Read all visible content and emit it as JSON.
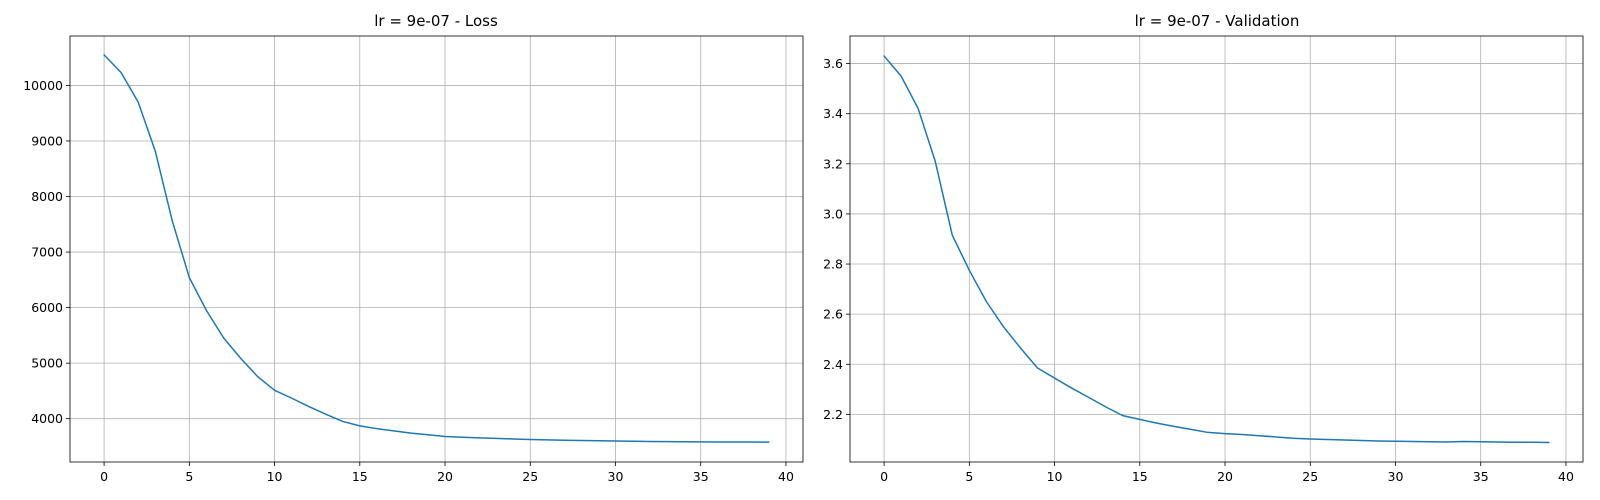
{
  "chart_data": [
    {
      "type": "line",
      "title": "lr = 9e-07 - Loss",
      "xlabel": "",
      "ylabel": "",
      "xlim": [
        -2,
        41
      ],
      "ylim": [
        3220,
        10890
      ],
      "xticks": [
        0,
        5,
        10,
        15,
        20,
        25,
        30,
        35,
        40
      ],
      "yticks": [
        4000,
        5000,
        6000,
        7000,
        8000,
        9000,
        10000
      ],
      "grid": true,
      "color": "#1f77b4",
      "x": [
        0,
        1,
        2,
        3,
        4,
        5,
        6,
        7,
        8,
        9,
        10,
        11,
        12,
        13,
        14,
        15,
        16,
        17,
        18,
        19,
        20,
        21,
        22,
        23,
        24,
        25,
        26,
        27,
        28,
        29,
        30,
        31,
        32,
        33,
        34,
        35,
        36,
        37,
        38,
        39
      ],
      "y": [
        10550,
        10230,
        9700,
        8820,
        7560,
        6540,
        5950,
        5460,
        5090,
        4760,
        4510,
        4370,
        4220,
        4080,
        3950,
        3870,
        3820,
        3780,
        3740,
        3710,
        3680,
        3665,
        3655,
        3645,
        3635,
        3625,
        3618,
        3612,
        3607,
        3602,
        3597,
        3594,
        3590,
        3587,
        3584,
        3582,
        3581,
        3580,
        3579,
        3578
      ]
    },
    {
      "type": "line",
      "title": "lr = 9e-07 - Validation",
      "xlabel": "",
      "ylabel": "",
      "xlim": [
        -2,
        41
      ],
      "ylim": [
        2.01,
        3.71
      ],
      "xticks": [
        0,
        5,
        10,
        15,
        20,
        25,
        30,
        35,
        40
      ],
      "yticks": [
        2.2,
        2.4,
        2.6,
        2.8,
        3.0,
        3.2,
        3.4,
        3.6
      ],
      "grid": true,
      "color": "#1f77b4",
      "x": [
        0,
        1,
        2,
        3,
        4,
        5,
        6,
        7,
        8,
        9,
        10,
        11,
        12,
        13,
        14,
        15,
        16,
        17,
        18,
        19,
        20,
        21,
        22,
        23,
        24,
        25,
        26,
        27,
        28,
        29,
        30,
        31,
        32,
        33,
        34,
        35,
        36,
        37,
        38,
        39
      ],
      "y": [
        3.63,
        3.55,
        3.42,
        3.21,
        2.915,
        2.775,
        2.65,
        2.55,
        2.465,
        2.385,
        2.345,
        2.305,
        2.268,
        2.23,
        2.195,
        2.18,
        2.165,
        2.152,
        2.14,
        2.128,
        2.123,
        2.12,
        2.115,
        2.11,
        2.105,
        2.102,
        2.1,
        2.098,
        2.096,
        2.094,
        2.093,
        2.092,
        2.091,
        2.09,
        2.092,
        2.091,
        2.09,
        2.089,
        2.089,
        2.088
      ]
    }
  ]
}
